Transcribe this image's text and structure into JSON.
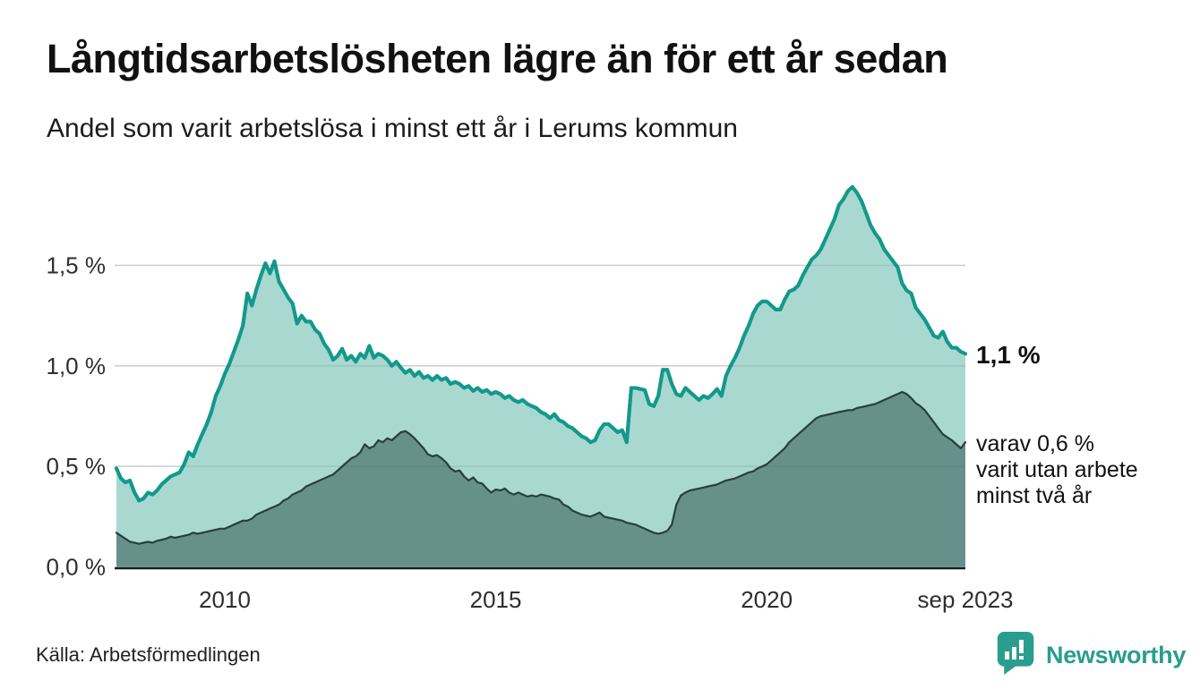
{
  "header": {
    "title": "Långtidsarbetslösheten lägre än för ett år sedan",
    "subtitle": "Andel som varit arbetslösa i minst ett år i Lerums kommun"
  },
  "annotations": {
    "end_value_label": "1,1 %",
    "secondary_label_lines": [
      "varav 0,6 %",
      "varit utan arbete",
      "minst två år"
    ]
  },
  "footer": {
    "source": "Källa: Arbetsförmedlingen",
    "brand": "Newsworthy",
    "brand_color": "#2a9d8f"
  },
  "chart_data": {
    "type": "area",
    "title": "Långtidsarbetslösheten lägre än för ett år sedan",
    "subtitle": "Andel som varit arbetslösa i minst ett år i Lerums kommun",
    "unit": "percent",
    "frequency": "monthly",
    "x_start": "2008-01",
    "x_end": "2023-09",
    "ylim": [
      0,
      1.95
    ],
    "grid": "horizontal",
    "colors": {
      "line_primary": "#13998b",
      "fill_primary": "#a9d8d0",
      "line_secondary": "#264039",
      "fill_secondary": "#66918b",
      "gridline": "#e0e0e0",
      "baseline": "#1b1b1b",
      "tick_text": "#2e2e2e"
    },
    "y_ticks": [
      {
        "value": 0.0,
        "label": "0,0 %"
      },
      {
        "value": 0.5,
        "label": "0,5 %"
      },
      {
        "value": 1.0,
        "label": "1,0 %"
      },
      {
        "value": 1.5,
        "label": "1,5 %"
      }
    ],
    "x_ticks": [
      {
        "index": 24,
        "label": "2010"
      },
      {
        "index": 84,
        "label": "2015"
      },
      {
        "index": 144,
        "label": "2020"
      },
      {
        "index": 188,
        "label": "sep 2023"
      }
    ],
    "series": [
      {
        "name": "Andel som varit arbetslösa i minst ett år",
        "end_value": 1.1,
        "values": [
          0.49,
          0.44,
          0.42,
          0.43,
          0.37,
          0.33,
          0.34,
          0.37,
          0.36,
          0.38,
          0.41,
          0.43,
          0.45,
          0.46,
          0.47,
          0.51,
          0.57,
          0.55,
          0.61,
          0.66,
          0.71,
          0.77,
          0.85,
          0.9,
          0.96,
          1.01,
          1.07,
          1.13,
          1.2,
          1.36,
          1.3,
          1.38,
          1.45,
          1.51,
          1.46,
          1.52,
          1.42,
          1.38,
          1.34,
          1.31,
          1.21,
          1.25,
          1.22,
          1.22,
          1.18,
          1.16,
          1.11,
          1.08,
          1.03,
          1.05,
          1.085,
          1.03,
          1.05,
          1.02,
          1.06,
          1.04,
          1.1,
          1.04,
          1.06,
          1.05,
          1.03,
          1.0,
          1.02,
          0.99,
          0.965,
          0.98,
          0.95,
          0.97,
          0.94,
          0.95,
          0.93,
          0.95,
          0.93,
          0.94,
          0.91,
          0.92,
          0.91,
          0.89,
          0.9,
          0.875,
          0.89,
          0.87,
          0.88,
          0.86,
          0.87,
          0.86,
          0.84,
          0.85,
          0.83,
          0.82,
          0.83,
          0.81,
          0.8,
          0.79,
          0.77,
          0.76,
          0.74,
          0.76,
          0.73,
          0.72,
          0.7,
          0.69,
          0.67,
          0.65,
          0.64,
          0.62,
          0.63,
          0.68,
          0.71,
          0.71,
          0.69,
          0.67,
          0.68,
          0.62,
          0.89,
          0.89,
          0.885,
          0.88,
          0.81,
          0.8,
          0.85,
          0.98,
          0.98,
          0.91,
          0.86,
          0.85,
          0.89,
          0.87,
          0.85,
          0.83,
          0.85,
          0.84,
          0.86,
          0.885,
          0.85,
          0.95,
          1.0,
          1.04,
          1.09,
          1.15,
          1.2,
          1.26,
          1.3,
          1.32,
          1.32,
          1.3,
          1.28,
          1.28,
          1.33,
          1.37,
          1.38,
          1.4,
          1.45,
          1.49,
          1.53,
          1.55,
          1.58,
          1.63,
          1.68,
          1.73,
          1.8,
          1.83,
          1.87,
          1.89,
          1.86,
          1.82,
          1.76,
          1.7,
          1.66,
          1.63,
          1.58,
          1.55,
          1.52,
          1.49,
          1.41,
          1.375,
          1.36,
          1.29,
          1.26,
          1.23,
          1.19,
          1.15,
          1.14,
          1.17,
          1.12,
          1.09,
          1.09,
          1.07,
          1.06
        ]
      },
      {
        "name": "varav utan arbete minst två år",
        "end_value": 0.6,
        "values": [
          0.17,
          0.155,
          0.14,
          0.125,
          0.12,
          0.115,
          0.12,
          0.125,
          0.12,
          0.13,
          0.135,
          0.14,
          0.15,
          0.145,
          0.15,
          0.155,
          0.16,
          0.17,
          0.165,
          0.17,
          0.175,
          0.18,
          0.185,
          0.19,
          0.19,
          0.2,
          0.21,
          0.22,
          0.23,
          0.23,
          0.24,
          0.26,
          0.27,
          0.28,
          0.29,
          0.3,
          0.31,
          0.33,
          0.34,
          0.36,
          0.37,
          0.38,
          0.4,
          0.41,
          0.42,
          0.43,
          0.44,
          0.45,
          0.46,
          0.48,
          0.5,
          0.52,
          0.54,
          0.55,
          0.57,
          0.61,
          0.59,
          0.6,
          0.63,
          0.62,
          0.64,
          0.63,
          0.65,
          0.67,
          0.675,
          0.66,
          0.64,
          0.615,
          0.59,
          0.56,
          0.55,
          0.556,
          0.54,
          0.52,
          0.49,
          0.475,
          0.48,
          0.45,
          0.43,
          0.445,
          0.42,
          0.415,
          0.39,
          0.37,
          0.385,
          0.38,
          0.39,
          0.37,
          0.36,
          0.37,
          0.36,
          0.35,
          0.355,
          0.35,
          0.36,
          0.355,
          0.35,
          0.34,
          0.335,
          0.31,
          0.3,
          0.28,
          0.27,
          0.26,
          0.255,
          0.25,
          0.26,
          0.27,
          0.25,
          0.245,
          0.24,
          0.235,
          0.23,
          0.22,
          0.215,
          0.21,
          0.2,
          0.19,
          0.18,
          0.17,
          0.165,
          0.17,
          0.18,
          0.21,
          0.31,
          0.355,
          0.37,
          0.38,
          0.385,
          0.39,
          0.395,
          0.4,
          0.405,
          0.41,
          0.42,
          0.43,
          0.435,
          0.44,
          0.45,
          0.46,
          0.47,
          0.475,
          0.49,
          0.5,
          0.51,
          0.53,
          0.55,
          0.57,
          0.59,
          0.62,
          0.64,
          0.66,
          0.68,
          0.7,
          0.72,
          0.74,
          0.75,
          0.755,
          0.76,
          0.765,
          0.77,
          0.775,
          0.78,
          0.78,
          0.79,
          0.795,
          0.8,
          0.805,
          0.81,
          0.82,
          0.83,
          0.84,
          0.85,
          0.86,
          0.87,
          0.86,
          0.84,
          0.815,
          0.8,
          0.78,
          0.75,
          0.72,
          0.69,
          0.66,
          0.645,
          0.63,
          0.61,
          0.59,
          0.62
        ]
      }
    ]
  }
}
